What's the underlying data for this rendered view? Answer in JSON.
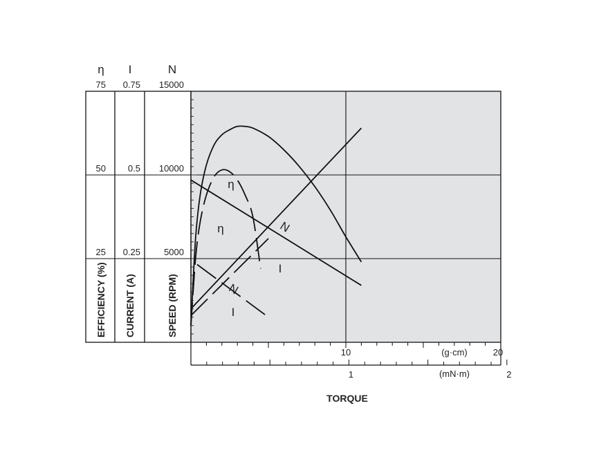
{
  "chart_data": {
    "type": "line",
    "title": "",
    "xlabel": "TORQUE",
    "grid": true,
    "x_axes": [
      {
        "unit": "(g·cm)",
        "range": [
          0,
          20
        ],
        "ticks": [
          10,
          20
        ]
      },
      {
        "unit": "(mN·m)",
        "range": [
          0,
          2
        ],
        "ticks": [
          1,
          2
        ]
      }
    ],
    "y_axes": [
      {
        "symbol": "η",
        "title": "EFFICIENCY (%)",
        "range": [
          0,
          75
        ],
        "ticks": [
          25,
          50,
          75
        ]
      },
      {
        "symbol": "I",
        "title": "CURRENT (A)",
        "range": [
          0,
          0.75
        ],
        "ticks": [
          0.25,
          0.5,
          0.75
        ]
      },
      {
        "symbol": "N",
        "title": "SPEED (RPM)",
        "range": [
          0,
          15000
        ],
        "ticks": [
          5000,
          10000,
          15000
        ]
      }
    ],
    "series": [
      {
        "name": "N",
        "style": "solid",
        "axis": "N",
        "x": [
          0,
          11
        ],
        "y": [
          9700,
          3400
        ]
      },
      {
        "name": "I",
        "style": "solid",
        "axis": "I",
        "x": [
          0,
          11
        ],
        "y": [
          0.1,
          0.64
        ]
      },
      {
        "name": "η",
        "style": "solid",
        "axis": "η",
        "x": [
          0,
          0.3,
          0.6,
          1.0,
          1.5,
          2.0,
          2.5,
          3.0,
          3.5,
          4.0,
          5.0,
          6.0,
          7.0,
          8.0,
          9.0,
          10.0,
          11.0
        ],
        "y": [
          5,
          31,
          44,
          53,
          59,
          62,
          63.5,
          64.5,
          64.5,
          64,
          61.5,
          57.5,
          52.5,
          46.5,
          39.5,
          31.5,
          24
        ]
      },
      {
        "name": "N",
        "style": "dashed",
        "axis": "N",
        "x": [
          0.4,
          5.0
        ],
        "y": [
          4650,
          1500
        ]
      },
      {
        "name": "I",
        "style": "dashed",
        "axis": "I",
        "x": [
          0,
          5.0
        ],
        "y": [
          0.08,
          0.31
        ]
      },
      {
        "name": "η",
        "style": "dashed",
        "axis": "η",
        "x": [
          0,
          0.3,
          0.6,
          1.0,
          1.5,
          2.0,
          2.5,
          3.0,
          3.5,
          4.0,
          4.5
        ],
        "y": [
          5,
          25,
          36,
          44,
          49.5,
          51.5,
          51,
          48.5,
          44,
          37.5,
          22
        ]
      }
    ]
  }
}
